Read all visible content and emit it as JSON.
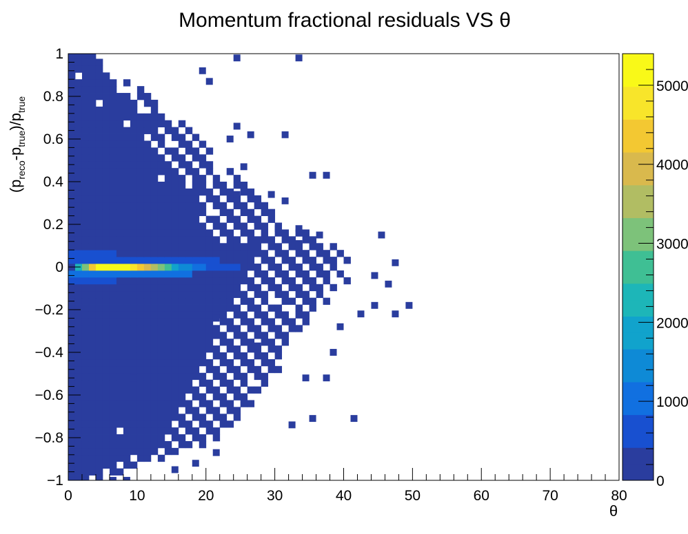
{
  "chart_data": {
    "type": "heatmap",
    "title": "Momentum fractional residuals VS θ",
    "xlabel": "θ",
    "ylabel": "(p_reco-p_true)/p_true",
    "ylabel_parts": {
      "open": "(p",
      "sub1": "reco",
      "mid": "-p",
      "sub2": "true",
      "close": ")/p",
      "sub3": "true"
    },
    "xlim": [
      0,
      80
    ],
    "ylim": [
      -1,
      1
    ],
    "zlim": [
      0,
      5400
    ],
    "grid": false,
    "colorbar": true,
    "x_ticks": [
      "0",
      "10",
      "20",
      "30",
      "40",
      "50",
      "60",
      "70",
      "80"
    ],
    "y_ticks": [
      "1",
      "0.8",
      "0.6",
      "0.4",
      "0.2",
      "0",
      "−0.2",
      "−0.4",
      "−0.6",
      "−0.8",
      "−1"
    ],
    "z_ticks": [
      "0",
      "1000",
      "2000",
      "3000",
      "4000",
      "5000"
    ],
    "bin_width_x": 1,
    "bin_width_y": 0.032,
    "palette": [
      "#2a3d9e",
      "#1850d0",
      "#1170e0",
      "#0e8ad6",
      "#11a3cc",
      "#1db6b8",
      "#3fbf94",
      "#7dc27a",
      "#b1bd63",
      "#d9b94d",
      "#f3c832",
      "#f8e52a",
      "#f9f918"
    ],
    "hotspot": {
      "row": 0,
      "bins": [
        {
          "x": 1,
          "value": 2200
        },
        {
          "x": 2,
          "value": 3200
        },
        {
          "x": 3,
          "value": 4300
        },
        {
          "x": 4,
          "value": 5000
        },
        {
          "x": 5,
          "value": 5400
        },
        {
          "x": 6,
          "value": 5400
        },
        {
          "x": 7,
          "value": 5300
        },
        {
          "x": 8,
          "value": 5000
        },
        {
          "x": 9,
          "value": 4700
        },
        {
          "x": 10,
          "value": 4400
        },
        {
          "x": 11,
          "value": 4100
        },
        {
          "x": 12,
          "value": 3500
        },
        {
          "x": 13,
          "value": 3100
        },
        {
          "x": 14,
          "value": 2500
        },
        {
          "x": 15,
          "value": 2000
        },
        {
          "x": 16,
          "value": 1600
        },
        {
          "x": 17,
          "value": 1400
        },
        {
          "x": 18,
          "value": 1200
        },
        {
          "x": 19,
          "value": 1000
        },
        {
          "x": 20,
          "value": 800
        },
        {
          "x": 21,
          "value": 700
        },
        {
          "x": 22,
          "value": 600
        },
        {
          "x": 23,
          "value": 500
        },
        {
          "x": 24,
          "value": 450
        },
        {
          "x": 25,
          "value": 400
        }
      ]
    },
    "core_rows": [
      {
        "row": 1,
        "x_from": 0,
        "x_to": 21,
        "value": 800
      },
      {
        "row": -1,
        "x_from": 0,
        "x_to": 17,
        "value": 900
      },
      {
        "row": 2,
        "x_from": 0,
        "x_to": 6,
        "value": 700
      },
      {
        "row": -2,
        "x_from": 0,
        "x_to": 6,
        "value": 600
      }
    ],
    "envelope_x_extent": [
      {
        "y": -1.0,
        "x": 4
      },
      {
        "y": -0.95,
        "x": 8
      },
      {
        "y": -0.9,
        "x": 14
      },
      {
        "y": -0.8,
        "x": 22
      },
      {
        "y": -0.7,
        "x": 25
      },
      {
        "y": -0.6,
        "x": 27
      },
      {
        "y": -0.5,
        "x": 30
      },
      {
        "y": -0.4,
        "x": 31
      },
      {
        "y": -0.3,
        "x": 33
      },
      {
        "y": -0.2,
        "x": 36
      },
      {
        "y": -0.1,
        "x": 40
      },
      {
        "y": 0.0,
        "x": 41
      },
      {
        "y": 0.1,
        "x": 38
      },
      {
        "y": 0.2,
        "x": 32
      },
      {
        "y": 0.3,
        "x": 29
      },
      {
        "y": 0.4,
        "x": 25
      },
      {
        "y": 0.5,
        "x": 21
      },
      {
        "y": 0.6,
        "x": 19
      },
      {
        "y": 0.7,
        "x": 16
      },
      {
        "y": 0.8,
        "x": 12
      },
      {
        "y": 0.9,
        "x": 7
      },
      {
        "y": 0.95,
        "x": 5
      },
      {
        "y": 1.0,
        "x": 4
      }
    ],
    "outlier_bins": [
      {
        "x": 24,
        "y": 0.98
      },
      {
        "x": 33,
        "y": 0.98
      },
      {
        "x": 19,
        "y": 0.92
      },
      {
        "x": 20,
        "y": 0.87
      },
      {
        "x": 24,
        "y": 0.66
      },
      {
        "x": 26,
        "y": 0.62
      },
      {
        "x": 31,
        "y": 0.62
      },
      {
        "x": 23,
        "y": 0.6
      },
      {
        "x": 25,
        "y": 0.47
      },
      {
        "x": 35,
        "y": 0.43
      },
      {
        "x": 37,
        "y": 0.43
      },
      {
        "x": 24,
        "y": 0.34
      },
      {
        "x": 26,
        "y": 0.34
      },
      {
        "x": 29,
        "y": 0.34
      },
      {
        "x": 31,
        "y": 0.31
      },
      {
        "x": 27,
        "y": 0.21
      },
      {
        "x": 30,
        "y": 0.18
      },
      {
        "x": 33,
        "y": 0.18
      },
      {
        "x": 36,
        "y": 0.15
      },
      {
        "x": 45,
        "y": 0.15
      },
      {
        "x": 33,
        "y": 0.11
      },
      {
        "x": 47,
        "y": 0.02
      },
      {
        "x": 44,
        "y": -0.04
      },
      {
        "x": 46,
        "y": -0.08
      },
      {
        "x": 49,
        "y": -0.18
      },
      {
        "x": 47,
        "y": -0.22
      },
      {
        "x": 44,
        "y": -0.18
      },
      {
        "x": 42,
        "y": -0.22
      },
      {
        "x": 39,
        "y": -0.28
      },
      {
        "x": 38,
        "y": -0.4
      },
      {
        "x": 37,
        "y": -0.52
      },
      {
        "x": 41,
        "y": -0.71
      },
      {
        "x": 35,
        "y": -0.71
      },
      {
        "x": 32,
        "y": -0.74
      },
      {
        "x": 21,
        "y": -0.87
      },
      {
        "x": 18,
        "y": -0.92
      },
      {
        "x": 15,
        "y": -0.95
      },
      {
        "x": 8,
        "y": -1.0
      },
      {
        "x": 6,
        "y": -1.0
      },
      {
        "x": 9,
        "y": -0.52
      },
      {
        "x": 18,
        "y": -0.33
      },
      {
        "x": 21,
        "y": -0.24
      },
      {
        "x": 27,
        "y": -0.37
      },
      {
        "x": 34,
        "y": -0.52
      }
    ],
    "empty_patches": [
      {
        "x": 7,
        "y": 0.82
      },
      {
        "x": 9,
        "y": 0.82
      },
      {
        "x": 6,
        "y": 0.92
      },
      {
        "x": 1,
        "y": 0.88
      },
      {
        "x": 4,
        "y": 0.78
      },
      {
        "x": 10,
        "y": 0.75
      },
      {
        "x": 13,
        "y": 0.72
      },
      {
        "x": 8,
        "y": 0.68
      },
      {
        "x": 11,
        "y": 0.62
      },
      {
        "x": 14,
        "y": 0.56
      },
      {
        "x": 16,
        "y": 0.53
      },
      {
        "x": 13,
        "y": 0.43
      },
      {
        "x": 17,
        "y": 0.37
      },
      {
        "x": 23,
        "y": 0.4
      },
      {
        "x": 20,
        "y": 0.27
      },
      {
        "x": 27,
        "y": 0.24
      },
      {
        "x": 29,
        "y": -0.17
      },
      {
        "x": 32,
        "y": -0.2
      },
      {
        "x": 30,
        "y": -0.27
      },
      {
        "x": 21,
        "y": -0.25
      },
      {
        "x": 24,
        "y": -0.46
      },
      {
        "x": 26,
        "y": -0.55
      },
      {
        "x": 22,
        "y": -0.58
      },
      {
        "x": 28,
        "y": -0.62
      },
      {
        "x": 7,
        "y": -0.77
      },
      {
        "x": 25,
        "y": -0.77
      },
      {
        "x": 27,
        "y": -0.8
      },
      {
        "x": 9,
        "y": -0.9
      },
      {
        "x": 10,
        "y": -0.95
      }
    ]
  }
}
